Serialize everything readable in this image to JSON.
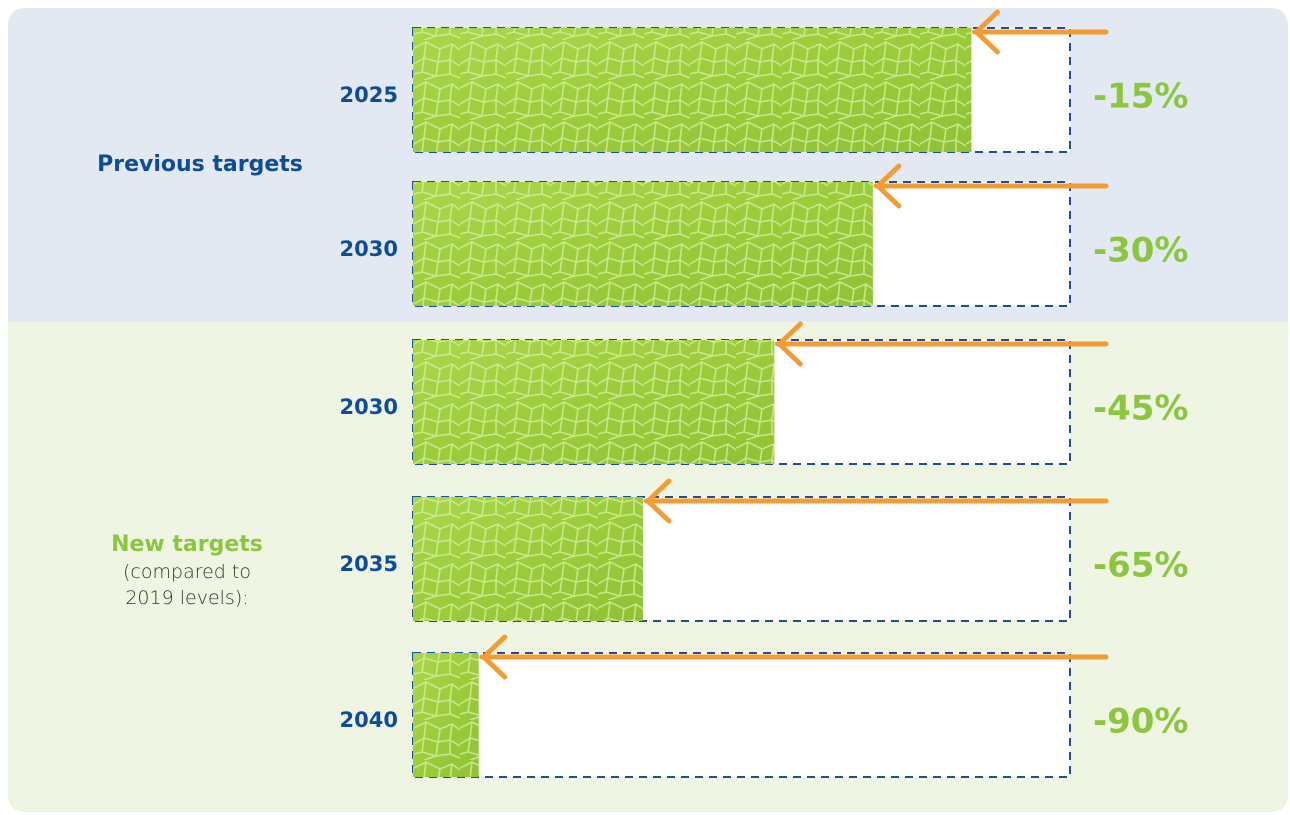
{
  "chart_data": {
    "type": "bar",
    "xlim": [
      -100,
      0
    ],
    "groups": [
      {
        "label": "Previous targets",
        "categories": [
          "2025",
          "2030"
        ],
        "values": [
          -15,
          -30
        ],
        "value_labels": [
          "-15%",
          "-30%"
        ]
      },
      {
        "label": "New targets",
        "note": "(compared to 2019 levels):",
        "categories": [
          "2030",
          "2035",
          "2040"
        ],
        "values": [
          -45,
          -65,
          -90
        ],
        "value_labels": [
          "-45%",
          "-65%",
          "-90%"
        ]
      }
    ]
  }
}
